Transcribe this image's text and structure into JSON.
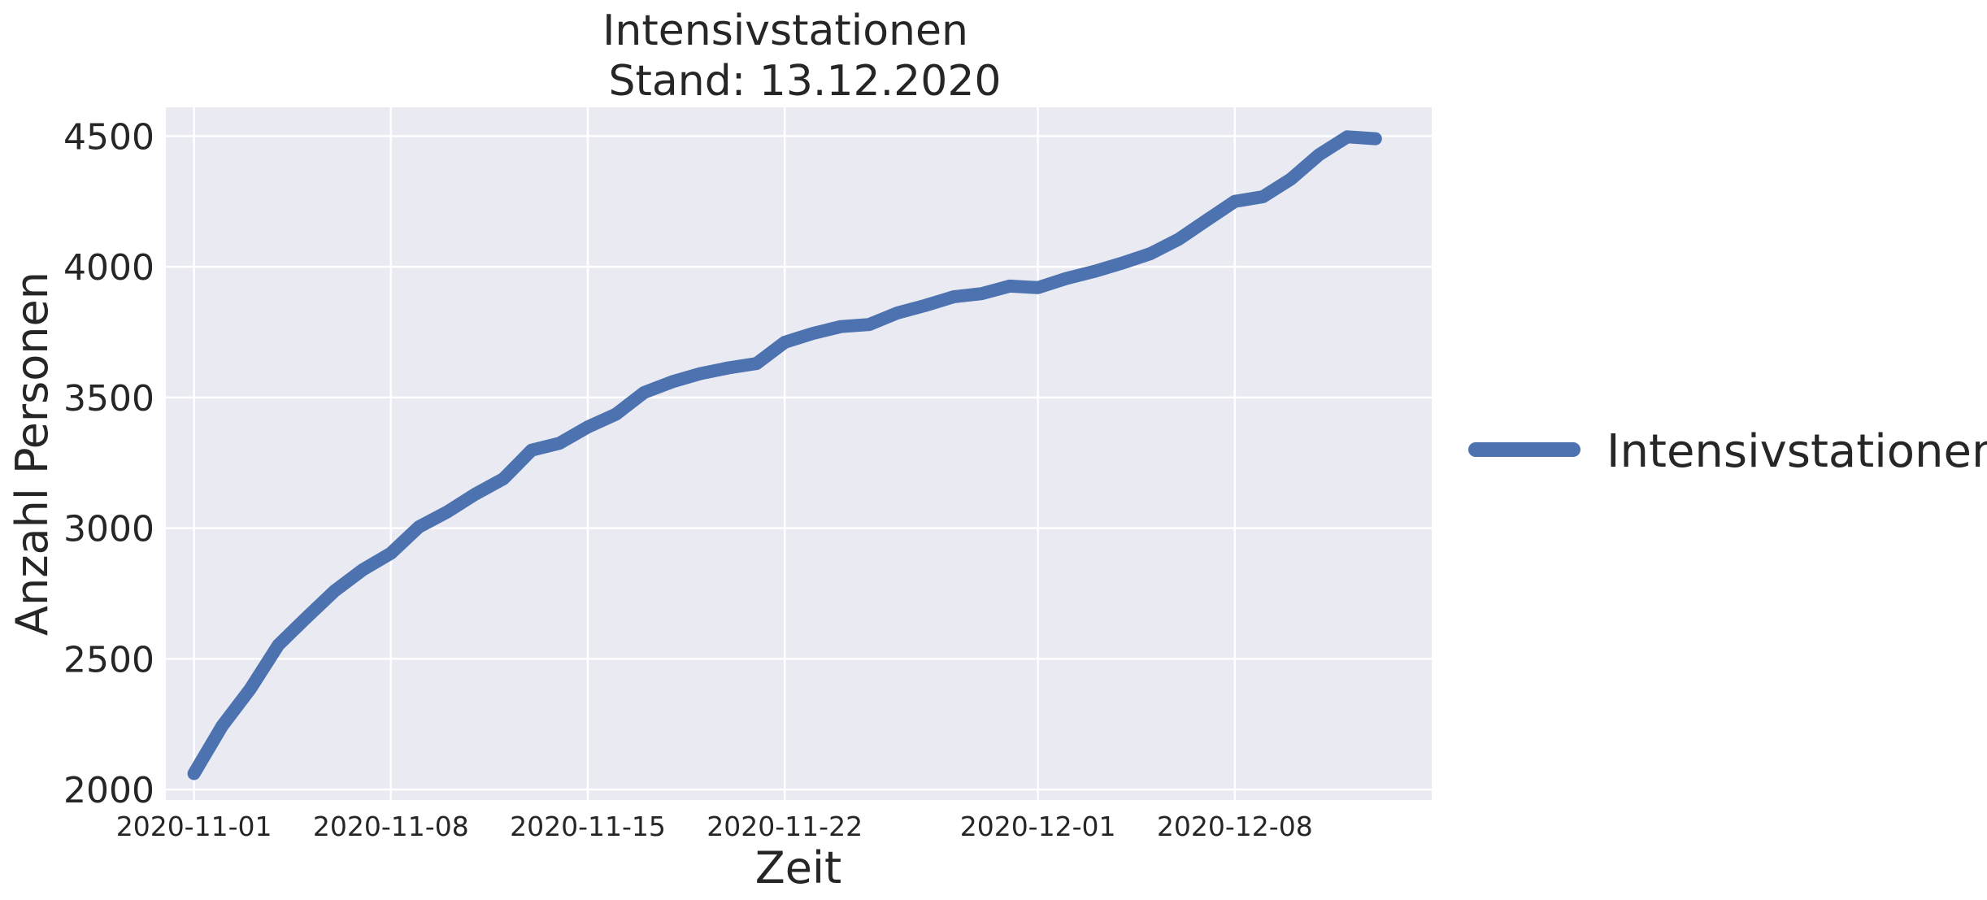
{
  "chart_data": {
    "type": "line",
    "title": [
      "Intensivstationen",
      "Stand: 13.12.2020"
    ],
    "xlabel": "Zeit",
    "ylabel": "Anzahl Personen",
    "x_start": "2020-10-31",
    "x_end": "2020-12-15",
    "ylim": [
      1960,
      4610
    ],
    "yticks": [
      2000,
      2500,
      3000,
      3500,
      4000,
      4500
    ],
    "xticks": [
      "2020-11-01",
      "2020-11-08",
      "2020-11-15",
      "2020-11-22",
      "2020-12-01",
      "2020-12-08"
    ],
    "grid": true,
    "legend_position": "right",
    "color": "#4c72b0",
    "series": [
      {
        "name": "Intensivstationen",
        "x": [
          "2020-11-01",
          "2020-11-02",
          "2020-11-03",
          "2020-11-04",
          "2020-11-05",
          "2020-11-06",
          "2020-11-07",
          "2020-11-08",
          "2020-11-09",
          "2020-11-10",
          "2020-11-11",
          "2020-11-12",
          "2020-11-13",
          "2020-11-14",
          "2020-11-15",
          "2020-11-16",
          "2020-11-17",
          "2020-11-18",
          "2020-11-19",
          "2020-11-20",
          "2020-11-21",
          "2020-11-22",
          "2020-11-23",
          "2020-11-24",
          "2020-11-25",
          "2020-11-26",
          "2020-11-27",
          "2020-11-28",
          "2020-11-29",
          "2020-11-30",
          "2020-12-01",
          "2020-12-02",
          "2020-12-03",
          "2020-12-04",
          "2020-12-05",
          "2020-12-06",
          "2020-12-07",
          "2020-12-08",
          "2020-12-09",
          "2020-12-10",
          "2020-12-11",
          "2020-12-12",
          "2020-12-13"
        ],
        "values": [
          2061,
          2243,
          2385,
          2553,
          2658,
          2760,
          2841,
          2904,
          3005,
          3062,
          3130,
          3189,
          3298,
          3325,
          3387,
          3436,
          3519,
          3560,
          3591,
          3613,
          3630,
          3711,
          3745,
          3771,
          3779,
          3823,
          3852,
          3885,
          3897,
          3926,
          3920,
          3955,
          3982,
          4014,
          4050,
          4105,
          4178,
          4250,
          4268,
          4336,
          4429,
          4497,
          4490
        ]
      }
    ]
  }
}
